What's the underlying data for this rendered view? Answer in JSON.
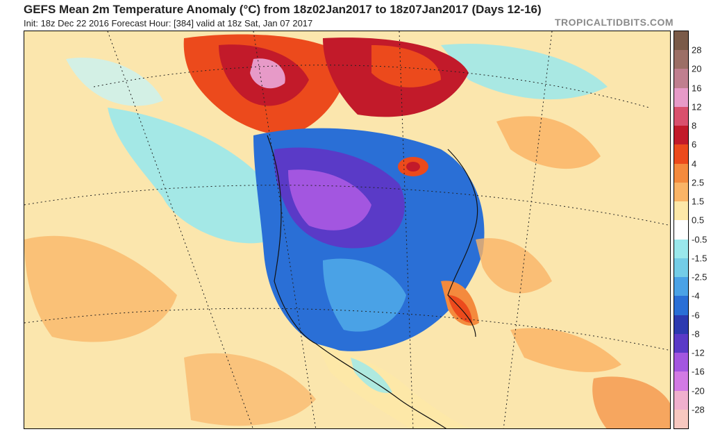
{
  "header": {
    "title": "GEFS Mean 2m Temperature Anomaly (°C) from 18z02Jan2017 to 18z07Jan2017 (Days 12-16)",
    "subtitle": "Init: 18z Dec 22 2016   Forecast Hour: [384]   valid at 18z Sat, Jan 07 2017",
    "credit": "TROPICALTIDBITS.COM"
  },
  "colorbar": {
    "labels": [
      "28",
      "20",
      "16",
      "12",
      "8",
      "6",
      "4",
      "2.5",
      "1.5",
      "0.5",
      "-0.5",
      "-1.5",
      "-2.5",
      "-4",
      "-6",
      "-8",
      "-12",
      "-16",
      "-20",
      "-28"
    ],
    "colors": [
      "#7a5a48",
      "#9c6f66",
      "#c07f8f",
      "#e79ac8",
      "#d9506d",
      "#c21a2a",
      "#ec4a1c",
      "#f48a3d",
      "#fab466",
      "#fde8a8",
      "#ffffff",
      "#9ae8ec",
      "#74cde7",
      "#4aa2e6",
      "#2a6fd6",
      "#2c3ab0",
      "#5a3ac7",
      "#a356e0",
      "#d27ae4",
      "#f0b0ce",
      "#f8c8c0"
    ]
  }
}
